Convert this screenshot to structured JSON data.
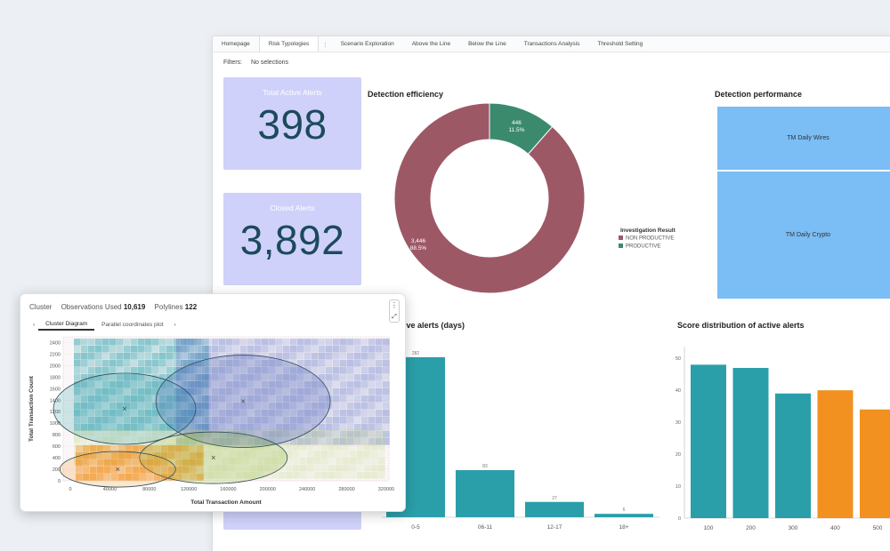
{
  "tabs": [
    "Homepage",
    "Risk Typologies",
    "Scenario Exploration",
    "Above the Line",
    "Below the Line",
    "Transactions Analysis",
    "Threshold Setting"
  ],
  "tab_separator": "⋮",
  "filters": {
    "label": "Filters:",
    "value": "No selections"
  },
  "kpis": {
    "active": {
      "title": "Total Active Alerts",
      "value": "398"
    },
    "closed": {
      "title": "Closed Alerts",
      "value": "3,892"
    }
  },
  "detection_efficiency": {
    "title": "Detection efficiency",
    "legend_title": "Investigation Result",
    "legend": [
      "NON PRODUCTIVE",
      "PRODUCTIVE"
    ]
  },
  "detection_performance": {
    "title": "Detection performance",
    "cells": [
      "TM Daily Wires",
      "TM Daily Crypto"
    ]
  },
  "age_chart_title": "tive alerts (days)",
  "score_chart_title": "Score distribution of active alerts",
  "colors": {
    "teal": "#2a9faa",
    "orange": "#f2911f",
    "maroon": "#9d5866",
    "green": "#3b8a6e",
    "kpi": "#cfd1fa",
    "blue": "#7bbdf5"
  },
  "chart_data": [
    {
      "type": "pie",
      "title": "Detection efficiency",
      "legend_title": "Investigation Result",
      "slices": [
        {
          "label": "NON PRODUCTIVE",
          "value": 3446,
          "percent": "88.5%",
          "display": "3,446",
          "color": "#9d5866"
        },
        {
          "label": "PRODUCTIVE",
          "value": 446,
          "percent": "11.5%",
          "display": "446",
          "color": "#3b8a6e"
        }
      ]
    },
    {
      "type": "bar",
      "title": "tive alerts (days)",
      "categories": [
        "0-5",
        "06-11",
        "12-17",
        "18+"
      ],
      "values": [
        282,
        83,
        27,
        6
      ],
      "labels": [
        "282",
        "83",
        "27",
        "6"
      ],
      "ylim": [
        0,
        300
      ]
    },
    {
      "type": "bar",
      "title": "Score distribution of active alerts",
      "categories": [
        "100",
        "200",
        "300",
        "400",
        "500"
      ],
      "values": [
        48,
        47,
        39,
        40,
        34
      ],
      "bar_colors": [
        "#2a9faa",
        "#2a9faa",
        "#2a9faa",
        "#f2911f",
        "#f2911f"
      ],
      "yticks": [
        0,
        10,
        20,
        30,
        40,
        50
      ],
      "ylim": [
        0,
        52
      ]
    },
    {
      "type": "scatter",
      "title": "Cluster",
      "observations_label": "Observations Used",
      "observations": "10,619",
      "polylines_label": "Polylines",
      "polylines": "122",
      "tabs": [
        "Cluster Diagram",
        "Parallel coordinates plot"
      ],
      "xlabel": "Total Transaction Amount",
      "ylabel": "Total Transaction Count",
      "xticks": [
        "0",
        "40000",
        "80000",
        "120000",
        "160000",
        "200000",
        "240000",
        "280000",
        "320000"
      ],
      "yticks": [
        "0",
        "200",
        "400",
        "600",
        "800",
        "1000",
        "1200",
        "1400",
        "1600",
        "1800",
        "2000",
        "2200",
        "2400"
      ],
      "clusters": [
        {
          "name": "teal",
          "cx": 55000,
          "cy": 1250,
          "color": "#2a9faa"
        },
        {
          "name": "blue",
          "cx": 175000,
          "cy": 1380,
          "color": "#3f56b0"
        },
        {
          "name": "green",
          "cx": 145000,
          "cy": 400,
          "color": "#8ab52a"
        },
        {
          "name": "orange",
          "cx": 48000,
          "cy": 200,
          "color": "#f2911f"
        }
      ]
    }
  ]
}
